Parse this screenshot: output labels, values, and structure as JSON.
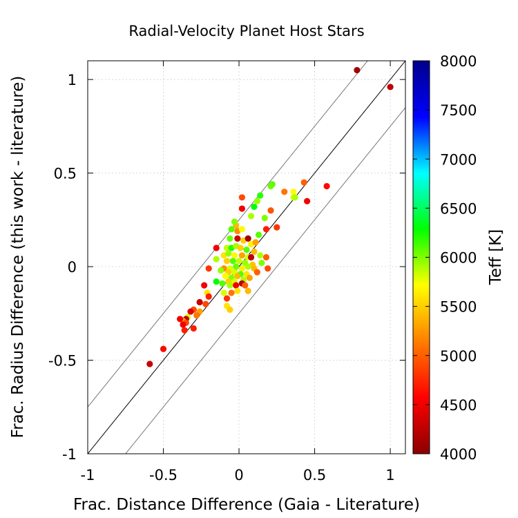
{
  "chart_data": {
    "type": "scatter",
    "title": "Radial-Velocity Planet Host Stars",
    "xlabel": "Frac. Distance Difference (Gaia - Literature)",
    "ylabel": "Frac. Radius Difference (this work - literature)",
    "xlim": [
      -1,
      1.1
    ],
    "ylim": [
      -1,
      1.1
    ],
    "xticks": [
      -1,
      -0.5,
      0,
      0.5,
      1
    ],
    "yticks": [
      -1,
      -0.5,
      0,
      0.5,
      1
    ],
    "xtick_labels": [
      "-1",
      "-0.5",
      "0",
      "0.5",
      "1"
    ],
    "ytick_labels": [
      "-1",
      "-0.5",
      "0",
      "0.5",
      "1"
    ],
    "grid": true,
    "colorbar": {
      "label": "Teff [K]",
      "range": [
        4000,
        8000
      ],
      "ticks": [
        4000,
        4500,
        5000,
        5500,
        6000,
        6500,
        7000,
        7500,
        8000
      ],
      "tick_labels": [
        "4000",
        "4500",
        "5000",
        "5500",
        "6000",
        "6500",
        "7000",
        "7500",
        "8000"
      ],
      "colors": [
        "#8b0000",
        "#ff0000",
        "#ff7f00",
        "#ffff00",
        "#00ff00",
        "#00ffff",
        "#0000ff",
        "#00008b"
      ]
    },
    "reference_lines": [
      {
        "name": "one-to-one",
        "slope": 1,
        "intercept": 0,
        "color": "#000000"
      },
      {
        "name": "upper-offset",
        "slope": 1,
        "intercept": 0.25,
        "color": "#777777"
      },
      {
        "name": "lower-offset",
        "slope": 1,
        "intercept": -0.25,
        "color": "#777777"
      }
    ],
    "points": [
      {
        "x": 0.78,
        "y": 1.05,
        "teff": 4100
      },
      {
        "x": 1.0,
        "y": 0.96,
        "teff": 4250
      },
      {
        "x": 0.58,
        "y": 0.43,
        "teff": 4600
      },
      {
        "x": 0.45,
        "y": 0.35,
        "teff": 4500
      },
      {
        "x": 0.43,
        "y": 0.45,
        "teff": 5000
      },
      {
        "x": 0.36,
        "y": 0.4,
        "teff": 5700
      },
      {
        "x": 0.36,
        "y": 0.37,
        "teff": 5800
      },
      {
        "x": 0.37,
        "y": 0.37,
        "teff": 5900
      },
      {
        "x": 0.3,
        "y": 0.4,
        "teff": 5100
      },
      {
        "x": 0.22,
        "y": 0.44,
        "teff": 6100
      },
      {
        "x": 0.21,
        "y": 0.43,
        "teff": 6050
      },
      {
        "x": 0.14,
        "y": 0.38,
        "teff": 6200
      },
      {
        "x": 0.12,
        "y": 0.35,
        "teff": 5950
      },
      {
        "x": 0.1,
        "y": 0.32,
        "teff": 6300
      },
      {
        "x": 0.02,
        "y": 0.37,
        "teff": 4900
      },
      {
        "x": 0.02,
        "y": 0.31,
        "teff": 4500
      },
      {
        "x": 0.08,
        "y": 0.27,
        "teff": 5900
      },
      {
        "x": 0.17,
        "y": 0.26,
        "teff": 6000
      },
      {
        "x": 0.21,
        "y": 0.3,
        "teff": 4950
      },
      {
        "x": 0.25,
        "y": 0.21,
        "teff": 4800
      },
      {
        "x": 0.18,
        "y": 0.2,
        "teff": 4700
      },
      {
        "x": 0.13,
        "y": 0.17,
        "teff": 6100
      },
      {
        "x": -0.02,
        "y": 0.22,
        "teff": 5400
      },
      {
        "x": -0.03,
        "y": 0.24,
        "teff": 6000
      },
      {
        "x": -0.05,
        "y": 0.2,
        "teff": 6100
      },
      {
        "x": -0.01,
        "y": 0.19,
        "teff": 5200
      },
      {
        "x": 0.02,
        "y": 0.2,
        "teff": 5700
      },
      {
        "x": -0.06,
        "y": 0.15,
        "teff": 6050
      },
      {
        "x": -0.01,
        "y": 0.15,
        "teff": 4300
      },
      {
        "x": 0.03,
        "y": 0.14,
        "teff": 5500
      },
      {
        "x": 0.06,
        "y": 0.15,
        "teff": 4100
      },
      {
        "x": 0.08,
        "y": 0.12,
        "teff": 5650
      },
      {
        "x": 0.11,
        "y": 0.13,
        "teff": 5300
      },
      {
        "x": -0.15,
        "y": 0.1,
        "teff": 4500
      },
      {
        "x": -0.08,
        "y": 0.1,
        "teff": 5850
      },
      {
        "x": -0.05,
        "y": 0.1,
        "teff": 6200
      },
      {
        "x": -0.02,
        "y": 0.11,
        "teff": 5900
      },
      {
        "x": 0.01,
        "y": 0.1,
        "teff": 5500
      },
      {
        "x": 0.05,
        "y": 0.09,
        "teff": 6100
      },
      {
        "x": 0.1,
        "y": 0.08,
        "teff": 5400
      },
      {
        "x": 0.14,
        "y": 0.06,
        "teff": 5900
      },
      {
        "x": 0.18,
        "y": 0.05,
        "teff": 5000
      },
      {
        "x": -0.1,
        "y": 0.06,
        "teff": 5600
      },
      {
        "x": -0.07,
        "y": 0.07,
        "teff": 5950
      },
      {
        "x": -0.03,
        "y": 0.06,
        "teff": 5700
      },
      {
        "x": 0.02,
        "y": 0.06,
        "teff": 5300
      },
      {
        "x": 0.06,
        "y": 0.05,
        "teff": 5800
      },
      {
        "x": 0.08,
        "y": 0.05,
        "teff": 4200
      },
      {
        "x": -0.15,
        "y": 0.04,
        "teff": 5900
      },
      {
        "x": -0.08,
        "y": 0.03,
        "teff": 5500
      },
      {
        "x": -0.04,
        "y": 0.03,
        "teff": 6100
      },
      {
        "x": 0.0,
        "y": 0.03,
        "teff": 5850
      },
      {
        "x": 0.04,
        "y": 0.02,
        "teff": 5950
      },
      {
        "x": 0.09,
        "y": 0.01,
        "teff": 5450
      },
      {
        "x": 0.15,
        "y": 0.02,
        "teff": 6000
      },
      {
        "x": -0.1,
        "y": -0.01,
        "teff": 5200
      },
      {
        "x": -0.06,
        "y": -0.01,
        "teff": 5800
      },
      {
        "x": -0.02,
        "y": 0.0,
        "teff": 6050
      },
      {
        "x": 0.02,
        "y": -0.01,
        "teff": 5650
      },
      {
        "x": 0.06,
        "y": 0.0,
        "teff": 5900
      },
      {
        "x": 0.1,
        "y": -0.01,
        "teff": 5400
      },
      {
        "x": 0.19,
        "y": -0.01,
        "teff": 4900
      },
      {
        "x": -0.2,
        "y": -0.01,
        "teff": 4800
      },
      {
        "x": -0.12,
        "y": -0.02,
        "teff": 5950
      },
      {
        "x": -0.07,
        "y": -0.03,
        "teff": 5500
      },
      {
        "x": -0.03,
        "y": -0.03,
        "teff": 5800
      },
      {
        "x": 0.01,
        "y": -0.04,
        "teff": 6100
      },
      {
        "x": 0.05,
        "y": -0.04,
        "teff": 5600
      },
      {
        "x": 0.12,
        "y": -0.03,
        "teff": 5000
      },
      {
        "x": -0.09,
        "y": -0.05,
        "teff": 5700
      },
      {
        "x": -0.05,
        "y": -0.06,
        "teff": 6000
      },
      {
        "x": -0.01,
        "y": -0.05,
        "teff": 5400
      },
      {
        "x": 0.03,
        "y": -0.07,
        "teff": 5900
      },
      {
        "x": 0.07,
        "y": -0.06,
        "teff": 5300
      },
      {
        "x": -0.07,
        "y": -0.08,
        "teff": 5500
      },
      {
        "x": -0.03,
        "y": -0.08,
        "teff": 5800
      },
      {
        "x": 0.02,
        "y": -0.09,
        "teff": 4200
      },
      {
        "x": -0.11,
        "y": -0.09,
        "teff": 6100
      },
      {
        "x": -0.06,
        "y": -0.1,
        "teff": 5900
      },
      {
        "x": -0.02,
        "y": -0.1,
        "teff": 4500
      },
      {
        "x": 0.04,
        "y": -0.1,
        "teff": 5000
      },
      {
        "x": -0.15,
        "y": -0.08,
        "teff": 6300
      },
      {
        "x": -0.23,
        "y": -0.1,
        "teff": 4500
      },
      {
        "x": -0.01,
        "y": -0.13,
        "teff": 5600
      },
      {
        "x": 0.06,
        "y": -0.13,
        "teff": 5400
      },
      {
        "x": -0.1,
        "y": -0.14,
        "teff": 5800
      },
      {
        "x": -0.05,
        "y": -0.14,
        "teff": 5100
      },
      {
        "x": -0.21,
        "y": -0.14,
        "teff": 5600
      },
      {
        "x": -0.2,
        "y": -0.16,
        "teff": 4700
      },
      {
        "x": -0.08,
        "y": -0.17,
        "teff": 4800
      },
      {
        "x": -0.26,
        "y": -0.19,
        "teff": 4300
      },
      {
        "x": -0.22,
        "y": -0.2,
        "teff": 4900
      },
      {
        "x": -0.08,
        "y": -0.21,
        "teff": 5600
      },
      {
        "x": -0.06,
        "y": -0.23,
        "teff": 5500
      },
      {
        "x": -0.3,
        "y": -0.23,
        "teff": 4900
      },
      {
        "x": -0.32,
        "y": -0.24,
        "teff": 4400
      },
      {
        "x": -0.26,
        "y": -0.24,
        "teff": 5300
      },
      {
        "x": -0.28,
        "y": -0.26,
        "teff": 5100
      },
      {
        "x": -0.34,
        "y": -0.27,
        "teff": 5800
      },
      {
        "x": -0.35,
        "y": -0.28,
        "teff": 4200
      },
      {
        "x": -0.37,
        "y": -0.29,
        "teff": 5300
      },
      {
        "x": -0.39,
        "y": -0.28,
        "teff": 4500
      },
      {
        "x": -0.35,
        "y": -0.3,
        "teff": 4900
      },
      {
        "x": -0.37,
        "y": -0.31,
        "teff": 4500
      },
      {
        "x": -0.3,
        "y": -0.33,
        "teff": 4700
      },
      {
        "x": -0.36,
        "y": -0.34,
        "teff": 4700
      },
      {
        "x": -0.5,
        "y": -0.44,
        "teff": 4600
      },
      {
        "x": -0.59,
        "y": -0.52,
        "teff": 4300
      }
    ]
  }
}
